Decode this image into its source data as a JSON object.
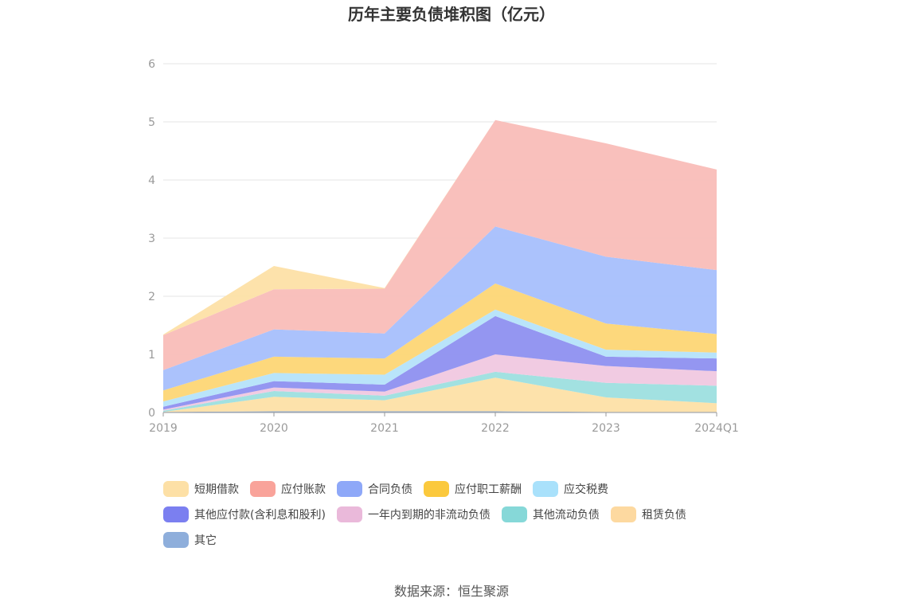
{
  "title": "历年主要负债堆积图（亿元）",
  "source_text": "数据来源：恒生聚源",
  "chart_data": {
    "type": "area",
    "stacked": true,
    "title": "历年主要负债堆积图（亿元）",
    "xlabel": "",
    "ylabel": "",
    "ylim": [
      0,
      6
    ],
    "yticks": [
      0,
      1,
      2,
      3,
      4,
      5,
      6
    ],
    "grid": true,
    "legend_position": "bottom",
    "categories": [
      "2019",
      "2020",
      "2021",
      "2022",
      "2023",
      "2024Q1"
    ],
    "series": [
      {
        "name": "其它",
        "color": "#8eaedb",
        "values": [
          0.01,
          0.02,
          0.02,
          0.02,
          0.01,
          0.01
        ]
      },
      {
        "name": "租赁负债",
        "color": "#fde0a6",
        "values": [
          0.0,
          0.25,
          0.19,
          0.58,
          0.25,
          0.15
        ]
      },
      {
        "name": "其他流动负债",
        "color": "#9ddfdf",
        "values": [
          0.02,
          0.1,
          0.08,
          0.1,
          0.25,
          0.3
        ]
      },
      {
        "name": "一年内到期的非流动负债",
        "color": "#f0c8e0",
        "values": [
          0.02,
          0.06,
          0.07,
          0.3,
          0.29,
          0.25
        ]
      },
      {
        "name": "其他应付款(含利息和股利)",
        "color": "#8e90f0",
        "values": [
          0.05,
          0.11,
          0.12,
          0.66,
          0.16,
          0.22
        ]
      },
      {
        "name": "应交税费",
        "color": "#b5e3fa",
        "values": [
          0.09,
          0.14,
          0.17,
          0.11,
          0.12,
          0.1
        ]
      },
      {
        "name": "应付职工薪酬",
        "color": "#fdd675",
        "values": [
          0.19,
          0.28,
          0.28,
          0.45,
          0.45,
          0.32
        ]
      },
      {
        "name": "合同负债",
        "color": "#a7bffc",
        "values": [
          0.35,
          0.47,
          0.43,
          0.98,
          1.15,
          1.1
        ]
      },
      {
        "name": "应付账款",
        "color": "#f9bdb8",
        "values": [
          0.6,
          0.69,
          0.77,
          1.83,
          1.95,
          1.73
        ]
      },
      {
        "name": "短期借款",
        "color": "#fde0a6",
        "values": [
          0.01,
          0.4,
          0.01,
          0.0,
          0.0,
          0.0
        ]
      }
    ]
  },
  "legend": {
    "rows": [
      [
        {
          "label": "短期借款",
          "color": "#fde0a6"
        },
        {
          "label": "应付账款",
          "color": "#f9a39a"
        },
        {
          "label": "合同负债",
          "color": "#8ea8f8"
        },
        {
          "label": "应付职工薪酬",
          "color": "#fbc93d"
        },
        {
          "label": "应交税费",
          "color": "#a9e1fb"
        }
      ],
      [
        {
          "label": "其他应付款(含利息和股利)",
          "color": "#7b7ff0"
        },
        {
          "label": "一年内到期的非流动负债",
          "color": "#eab9da"
        },
        {
          "label": "其他流动负债",
          "color": "#86d8d8"
        },
        {
          "label": "租赁负债",
          "color": "#fdd9a0"
        }
      ],
      [
        {
          "label": "其它",
          "color": "#8eaedb"
        }
      ]
    ]
  }
}
